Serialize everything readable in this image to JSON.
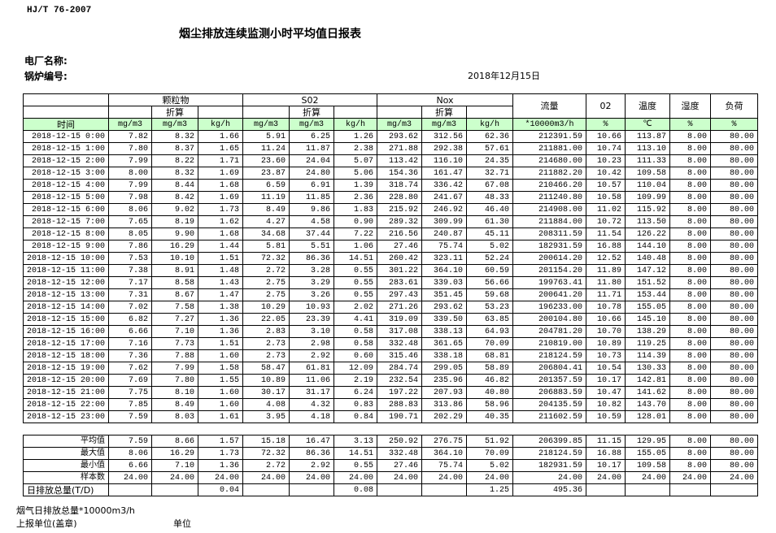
{
  "header": {
    "standard": "HJ/T  76-2007",
    "title": "烟尘排放连续监测小时平均值日报表",
    "plant_label": "电厂名称:",
    "boiler_label": "锅炉编号:",
    "date": "2018年12月15日"
  },
  "table": {
    "groups": [
      "颗粒物",
      "S02",
      "Nox"
    ],
    "converted": [
      "折算",
      "折算",
      "折算"
    ],
    "single_headers": [
      "流量",
      "02",
      "温度",
      "湿度",
      "负荷"
    ],
    "units": [
      "时间",
      "mg/m3",
      "mg/m3",
      "kg/h",
      "mg/m3",
      "mg/m3",
      "kg/h",
      "mg/m3",
      "mg/m3",
      "kg/h",
      "*10000m3/h",
      "%",
      "℃",
      "%",
      "%"
    ],
    "rows": [
      [
        "2018-12-15 0:00",
        "7.82",
        "8.32",
        "1.66",
        "5.91",
        "6.25",
        "1.26",
        "293.62",
        "312.56",
        "62.36",
        "212391.59",
        "10.66",
        "113.87",
        "8.00",
        "80.00"
      ],
      [
        "2018-12-15 1:00",
        "7.80",
        "8.37",
        "1.65",
        "11.24",
        "11.87",
        "2.38",
        "271.88",
        "292.38",
        "57.61",
        "211881.00",
        "10.74",
        "113.10",
        "8.00",
        "80.00"
      ],
      [
        "2018-12-15 2:00",
        "7.99",
        "8.22",
        "1.71",
        "23.60",
        "24.04",
        "5.07",
        "113.42",
        "116.10",
        "24.35",
        "214680.00",
        "10.23",
        "111.33",
        "8.00",
        "80.00"
      ],
      [
        "2018-12-15 3:00",
        "8.00",
        "8.32",
        "1.69",
        "23.87",
        "24.80",
        "5.06",
        "154.36",
        "161.47",
        "32.71",
        "211882.20",
        "10.42",
        "109.58",
        "8.00",
        "80.00"
      ],
      [
        "2018-12-15 4:00",
        "7.99",
        "8.44",
        "1.68",
        "6.59",
        "6.91",
        "1.39",
        "318.74",
        "336.42",
        "67.08",
        "210466.20",
        "10.57",
        "110.04",
        "8.00",
        "80.00"
      ],
      [
        "2018-12-15 5:00",
        "7.98",
        "8.42",
        "1.69",
        "11.19",
        "11.85",
        "2.36",
        "228.80",
        "241.67",
        "48.33",
        "211240.80",
        "10.58",
        "109.99",
        "8.00",
        "80.00"
      ],
      [
        "2018-12-15 6:00",
        "8.06",
        "9.02",
        "1.73",
        "8.49",
        "9.86",
        "1.83",
        "215.92",
        "246.92",
        "46.40",
        "214908.00",
        "11.02",
        "115.92",
        "8.00",
        "80.00"
      ],
      [
        "2018-12-15 7:00",
        "7.65",
        "8.19",
        "1.62",
        "4.27",
        "4.58",
        "0.90",
        "289.32",
        "309.99",
        "61.30",
        "211884.00",
        "10.72",
        "113.50",
        "8.00",
        "80.00"
      ],
      [
        "2018-12-15 8:00",
        "8.05",
        "9.90",
        "1.68",
        "34.68",
        "37.44",
        "7.22",
        "216.56",
        "240.87",
        "45.11",
        "208311.59",
        "11.54",
        "126.22",
        "8.00",
        "80.00"
      ],
      [
        "2018-12-15 9:00",
        "7.86",
        "16.29",
        "1.44",
        "5.81",
        "5.51",
        "1.06",
        "27.46",
        "75.74",
        "5.02",
        "182931.59",
        "16.88",
        "144.10",
        "8.00",
        "80.00"
      ],
      [
        "2018-12-15 10:00",
        "7.53",
        "10.10",
        "1.51",
        "72.32",
        "86.36",
        "14.51",
        "260.42",
        "323.11",
        "52.24",
        "200614.20",
        "12.52",
        "140.48",
        "8.00",
        "80.00"
      ],
      [
        "2018-12-15 11:00",
        "7.38",
        "8.91",
        "1.48",
        "2.72",
        "3.28",
        "0.55",
        "301.22",
        "364.10",
        "60.59",
        "201154.20",
        "11.89",
        "147.12",
        "8.00",
        "80.00"
      ],
      [
        "2018-12-15 12:00",
        "7.17",
        "8.58",
        "1.43",
        "2.75",
        "3.29",
        "0.55",
        "283.61",
        "339.03",
        "56.66",
        "199763.41",
        "11.80",
        "151.52",
        "8.00",
        "80.00"
      ],
      [
        "2018-12-15 13:00",
        "7.31",
        "8.67",
        "1.47",
        "2.75",
        "3.26",
        "0.55",
        "297.43",
        "351.45",
        "59.68",
        "200641.20",
        "11.71",
        "153.44",
        "8.00",
        "80.00"
      ],
      [
        "2018-12-15 14:00",
        "7.02",
        "7.58",
        "1.38",
        "10.29",
        "10.93",
        "2.02",
        "271.26",
        "293.62",
        "53.23",
        "196233.00",
        "10.78",
        "155.05",
        "8.00",
        "80.00"
      ],
      [
        "2018-12-15 15:00",
        "6.82",
        "7.27",
        "1.36",
        "22.05",
        "23.39",
        "4.41",
        "319.09",
        "339.50",
        "63.85",
        "200104.80",
        "10.66",
        "145.10",
        "8.00",
        "80.00"
      ],
      [
        "2018-12-15 16:00",
        "6.66",
        "7.10",
        "1.36",
        "2.83",
        "3.10",
        "0.58",
        "317.08",
        "338.13",
        "64.93",
        "204781.20",
        "10.70",
        "138.29",
        "8.00",
        "80.00"
      ],
      [
        "2018-12-15 17:00",
        "7.16",
        "7.73",
        "1.51",
        "2.73",
        "2.98",
        "0.58",
        "332.48",
        "361.65",
        "70.09",
        "210819.00",
        "10.89",
        "119.25",
        "8.00",
        "80.00"
      ],
      [
        "2018-12-15 18:00",
        "7.36",
        "7.88",
        "1.60",
        "2.73",
        "2.92",
        "0.60",
        "315.46",
        "338.18",
        "68.81",
        "218124.59",
        "10.73",
        "114.39",
        "8.00",
        "80.00"
      ],
      [
        "2018-12-15 19:00",
        "7.62",
        "7.99",
        "1.58",
        "58.47",
        "61.81",
        "12.09",
        "284.74",
        "299.05",
        "58.89",
        "206804.41",
        "10.54",
        "130.33",
        "8.00",
        "80.00"
      ],
      [
        "2018-12-15 20:00",
        "7.69",
        "7.80",
        "1.55",
        "10.89",
        "11.06",
        "2.19",
        "232.54",
        "235.96",
        "46.82",
        "201357.59",
        "10.17",
        "142.81",
        "8.00",
        "80.00"
      ],
      [
        "2018-12-15 21:00",
        "7.75",
        "8.10",
        "1.60",
        "30.17",
        "31.17",
        "6.24",
        "197.22",
        "207.93",
        "40.80",
        "206883.59",
        "10.47",
        "141.62",
        "8.00",
        "80.00"
      ],
      [
        "2018-12-15 22:00",
        "7.85",
        "8.49",
        "1.60",
        "4.08",
        "4.32",
        "0.83",
        "288.83",
        "313.86",
        "58.96",
        "204135.59",
        "10.82",
        "143.70",
        "8.00",
        "80.00"
      ],
      [
        "2018-12-15 23:00",
        "7.59",
        "8.03",
        "1.61",
        "3.95",
        "4.18",
        "0.84",
        "190.71",
        "202.29",
        "40.35",
        "211602.59",
        "10.59",
        "128.01",
        "8.00",
        "80.00"
      ]
    ],
    "summary": [
      [
        "平均值",
        "7.59",
        "8.66",
        "1.57",
        "15.18",
        "16.47",
        "3.13",
        "250.92",
        "276.75",
        "51.92",
        "206399.85",
        "11.15",
        "129.95",
        "8.00",
        "80.00"
      ],
      [
        "最大值",
        "8.06",
        "16.29",
        "1.73",
        "72.32",
        "86.36",
        "14.51",
        "332.48",
        "364.10",
        "70.09",
        "218124.59",
        "16.88",
        "155.05",
        "8.00",
        "80.00"
      ],
      [
        "最小值",
        "6.66",
        "7.10",
        "1.36",
        "2.72",
        "2.92",
        "0.55",
        "27.46",
        "75.74",
        "5.02",
        "182931.59",
        "10.17",
        "109.58",
        "8.00",
        "80.00"
      ],
      [
        "样本数",
        "24.00",
        "24.00",
        "24.00",
        "24.00",
        "24.00",
        "24.00",
        "24.00",
        "24.00",
        "24.00",
        "24.00",
        "24.00",
        "24.00",
        "24.00",
        "24.00"
      ]
    ],
    "daily_total": {
      "label": "日排放总量(T/D)",
      "particulate_kg_h": "0.04",
      "so2_kg_h": "0.08",
      "nox_kg_h": "1.25",
      "flow": "495.36"
    }
  },
  "footer": {
    "flue_gas_total": "烟气日排放总量*10000m3/h",
    "reporting_unit": "上报单位(盖章)",
    "unit": "单位"
  }
}
